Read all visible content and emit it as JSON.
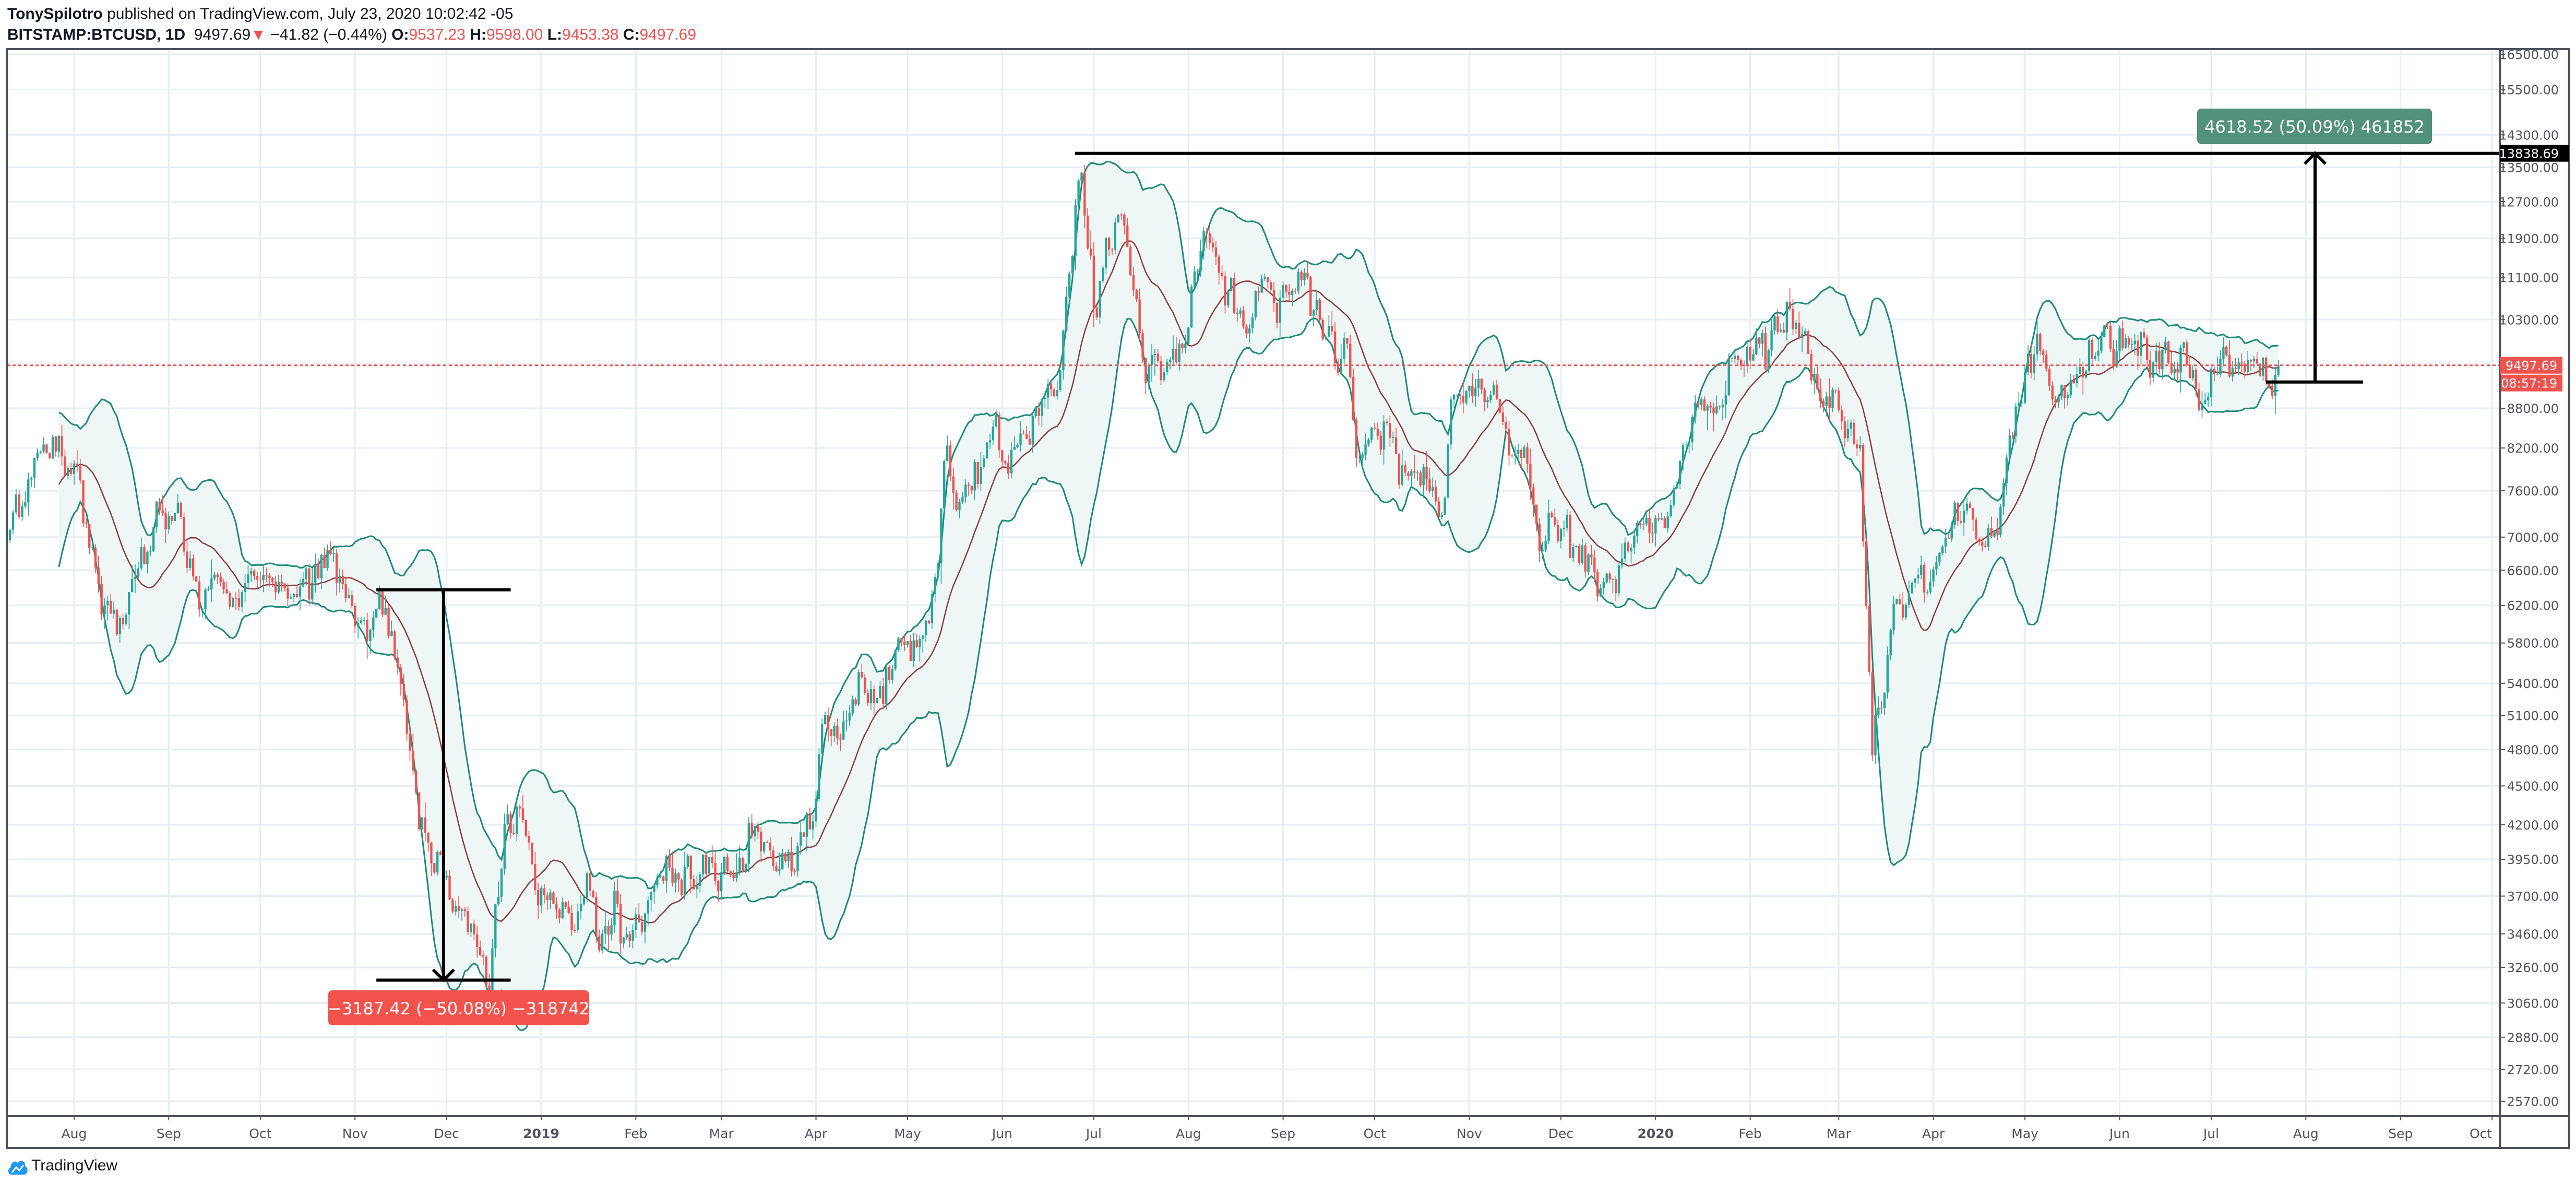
{
  "header": {
    "author": "TonySpilotro",
    "published_text": " published on TradingView.com, July 23, 2020 10:02:42 -05",
    "symbol": "BITSTAMP:BTCUSD, 1D",
    "last": "9497.69",
    "change": "−41.82 (−0.44%)",
    "o_label": "O:",
    "o": "9537.23",
    "h_label": "H:",
    "h": "9598.00",
    "l_label": "L:",
    "l": "9453.38",
    "c_label": "C:",
    "c": "9497.69"
  },
  "branding": {
    "logo_text": "TradingView"
  },
  "colors": {
    "up": "#26a69a",
    "down": "#ef5350",
    "band": "#1e8a7a",
    "band_fill": "#eef7f6",
    "basis": "#8b3a3a",
    "grid": "#e6edf3",
    "measure_up": "#52917c",
    "measure_down": "#f3534d"
  },
  "chart_data": {
    "type": "candlestick",
    "title": "BITSTAMP:BTCUSD, 1D",
    "scale": "log",
    "ylim": [
      2500,
      17000
    ],
    "indicator": "Bollinger Bands (20, 2)",
    "yticks": [
      "16500.00",
      "15500.00",
      "14300.00",
      "13500.00",
      "12700.00",
      "11900.00",
      "11100.00",
      "10300.00",
      "8800.00",
      "8200.00",
      "7600.00",
      "7000.00",
      "6600.00",
      "6200.00",
      "5800.00",
      "5400.00",
      "5100.00",
      "4800.00",
      "4500.00",
      "4200.00",
      "3950.00",
      "3700.00",
      "3460.00",
      "3260.00",
      "3060.00",
      "2880.00",
      "2720.00",
      "2570.00"
    ],
    "xticks": [
      {
        "date": "2018-08-01",
        "label": "Aug"
      },
      {
        "date": "2018-09-01",
        "label": "Sep"
      },
      {
        "date": "2018-10-01",
        "label": "Oct"
      },
      {
        "date": "2018-11-01",
        "label": "Nov"
      },
      {
        "date": "2018-12-01",
        "label": "Dec"
      },
      {
        "date": "2019-01-01",
        "label": "2019"
      },
      {
        "date": "2019-02-01",
        "label": "Feb"
      },
      {
        "date": "2019-03-01",
        "label": "Mar"
      },
      {
        "date": "2019-04-01",
        "label": "Apr"
      },
      {
        "date": "2019-05-01",
        "label": "May"
      },
      {
        "date": "2019-06-01",
        "label": "Jun"
      },
      {
        "date": "2019-07-01",
        "label": "Jul"
      },
      {
        "date": "2019-08-01",
        "label": "Aug"
      },
      {
        "date": "2019-09-01",
        "label": "Sep"
      },
      {
        "date": "2019-10-01",
        "label": "Oct"
      },
      {
        "date": "2019-11-01",
        "label": "Nov"
      },
      {
        "date": "2019-12-01",
        "label": "Dec"
      },
      {
        "date": "2020-01-01",
        "label": "2020"
      },
      {
        "date": "2020-02-01",
        "label": "Feb"
      },
      {
        "date": "2020-03-01",
        "label": "Mar"
      },
      {
        "date": "2020-04-01",
        "label": "Apr"
      },
      {
        "date": "2020-05-01",
        "label": "May"
      },
      {
        "date": "2020-06-01",
        "label": "Jun"
      },
      {
        "date": "2020-07-01",
        "label": "Jul"
      },
      {
        "date": "2020-08-01",
        "label": "Aug"
      },
      {
        "date": "2020-09-01",
        "label": "Sep"
      },
      {
        "date": "2020-10-01",
        "label": "Oct"
      }
    ],
    "approx_close_path": [
      [
        "2018-07-08",
        6700
      ],
      [
        "2018-07-24",
        8200
      ],
      [
        "2018-07-31",
        7700
      ],
      [
        "2018-08-10",
        6300
      ],
      [
        "2018-08-14",
        6000
      ],
      [
        "2018-08-20",
        6400
      ],
      [
        "2018-09-04",
        7300
      ],
      [
        "2018-09-10",
        6300
      ],
      [
        "2018-09-20",
        6500
      ],
      [
        "2018-10-10",
        6550
      ],
      [
        "2018-10-20",
        6450
      ],
      [
        "2018-11-05",
        6400
      ],
      [
        "2018-11-13",
        6300
      ],
      [
        "2018-11-15",
        5600
      ],
      [
        "2018-11-20",
        4500
      ],
      [
        "2018-11-25",
        3900
      ],
      [
        "2018-12-05",
        3700
      ],
      [
        "2018-12-15",
        3200
      ],
      [
        "2018-12-20",
        4000
      ],
      [
        "2018-12-24",
        4000
      ],
      [
        "2018-12-31",
        3700
      ],
      [
        "2019-01-10",
        3600
      ],
      [
        "2019-01-28",
        3450
      ],
      [
        "2019-02-08",
        3650
      ],
      [
        "2019-02-18",
        3900
      ],
      [
        "2019-03-31",
        4100
      ],
      [
        "2019-04-03",
        4900
      ],
      [
        "2019-04-20",
        5300
      ],
      [
        "2019-05-10",
        6300
      ],
      [
        "2019-05-14",
        8000
      ],
      [
        "2019-05-17",
        7300
      ],
      [
        "2019-05-30",
        8600
      ],
      [
        "2019-06-03",
        8000
      ],
      [
        "2019-06-20",
        9500
      ],
      [
        "2019-06-26",
        12900
      ],
      [
        "2019-07-02",
        10500
      ],
      [
        "2019-07-10",
        12300
      ],
      [
        "2019-07-17",
        9500
      ],
      [
        "2019-07-30",
        9700
      ],
      [
        "2019-08-06",
        11800
      ],
      [
        "2019-08-15",
        10300
      ],
      [
        "2019-09-05",
        10600
      ],
      [
        "2019-09-23",
        9700
      ],
      [
        "2019-09-25",
        8400
      ],
      [
        "2019-10-24",
        7400
      ],
      [
        "2019-10-26",
        9300
      ],
      [
        "2019-11-08",
        8800
      ],
      [
        "2019-11-20",
        8000
      ],
      [
        "2019-11-25",
        7100
      ],
      [
        "2019-12-03",
        7300
      ],
      [
        "2019-12-17",
        6600
      ],
      [
        "2019-12-20",
        7150
      ],
      [
        "2020-01-02",
        7000
      ],
      [
        "2020-01-14",
        8800
      ],
      [
        "2020-02-13",
        10300
      ],
      [
        "2020-02-20",
        9700
      ],
      [
        "2020-02-27",
        8800
      ],
      [
        "2020-03-08",
        8000
      ],
      [
        "2020-03-12",
        4900
      ],
      [
        "2020-03-19",
        6200
      ],
      [
        "2020-03-31",
        6400
      ],
      [
        "2020-04-06",
        7300
      ],
      [
        "2020-04-20",
        6900
      ],
      [
        "2020-04-29",
        8800
      ],
      [
        "2020-05-07",
        9800
      ],
      [
        "2020-05-10",
        8700
      ],
      [
        "2020-05-20",
        9500
      ],
      [
        "2020-06-01",
        10200
      ],
      [
        "2020-06-10",
        9800
      ],
      [
        "2020-06-20",
        9300
      ],
      [
        "2020-06-30",
        9150
      ],
      [
        "2020-07-10",
        9250
      ],
      [
        "2020-07-20",
        9160
      ],
      [
        "2020-07-23",
        9497.69
      ]
    ],
    "last_price_label": "9497.69",
    "countdown_label": "08:57:19",
    "annotations": {
      "measure_down": {
        "from_price": 6375,
        "to_price": 3187,
        "from_date": "2018-11-08",
        "to_date": "2018-12-22",
        "arrow_date": "2018-11-30",
        "label": "−3187.42 (−50.08%) −318742"
      },
      "measure_up": {
        "from_price": 9220.17,
        "to_price": 13838.69,
        "label": "4618.52 (50.09%) 461852",
        "price_label": "13838.69"
      }
    }
  }
}
